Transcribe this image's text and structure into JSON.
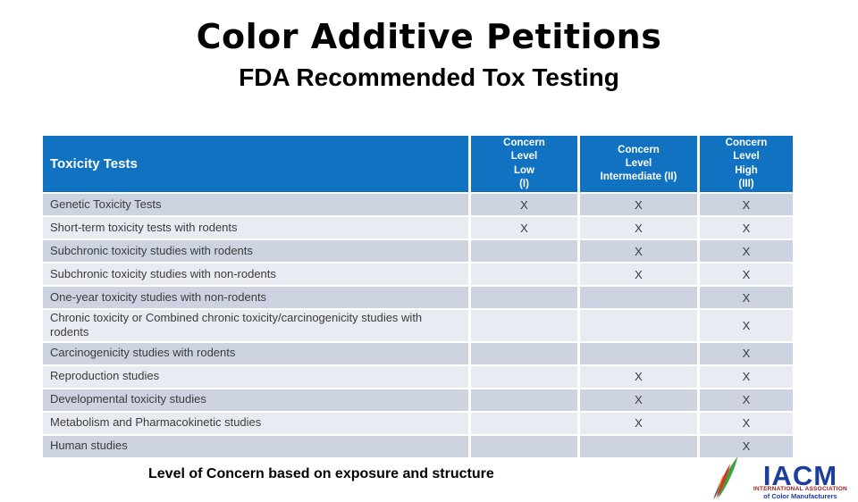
{
  "title": "Color Additive Petitions",
  "subtitle": "FDA Recommended Tox Testing",
  "caption": "Level of Concern based on exposure and structure",
  "table": {
    "header": {
      "col0": "Toxicity Tests",
      "col1": "Concern\nLevel\nLow\n(I)",
      "col2": "Concern\nLevel\nIntermediate (II)",
      "col3": "Concern\nLevel\nHigh\n(III)"
    },
    "colors": {
      "header_bg": "#1272C2",
      "header_text": "#FFFFFF",
      "row_odd_bg": "#CDD3E0",
      "row_even_bg": "#E9EBF3",
      "row_text": "#3B3B3B"
    },
    "rows": [
      {
        "label": "Genetic Toxicity Tests",
        "low": "X",
        "intermediate": "X",
        "high": "X"
      },
      {
        "label": "Short-term toxicity tests with rodents",
        "low": "X",
        "intermediate": "X",
        "high": "X"
      },
      {
        "label": "Subchronic toxicity studies with rodents",
        "low": "",
        "intermediate": "X",
        "high": "X"
      },
      {
        "label": "Subchronic toxicity studies with non-rodents",
        "low": "",
        "intermediate": "X",
        "high": "X"
      },
      {
        "label": "One-year toxicity studies with non-rodents",
        "low": "",
        "intermediate": "",
        "high": "X"
      },
      {
        "label": "Chronic toxicity or Combined chronic toxicity/carcinogenicity studies with rodents",
        "low": "",
        "intermediate": "",
        "high": "X"
      },
      {
        "label": "Carcinogenicity studies with rodents",
        "low": "",
        "intermediate": "",
        "high": "X"
      },
      {
        "label": "Reproduction studies",
        "low": "",
        "intermediate": "X",
        "high": "X"
      },
      {
        "label": "Developmental toxicity studies",
        "low": "",
        "intermediate": "X",
        "high": "X"
      },
      {
        "label": "Metabolism and Pharmacokinetic studies",
        "low": "",
        "intermediate": "X",
        "high": "X"
      },
      {
        "label": "Human studies",
        "low": "",
        "intermediate": "",
        "high": "X"
      }
    ]
  },
  "logo": {
    "acronym": "IACM",
    "tagline_line1": "INTERNATIONAL ASSOCIATION",
    "tagline_line2": "of Color Manufacturers",
    "colors": {
      "acronym_blue": "#1C3F9E",
      "tagline_red": "#9E1B1B",
      "swoosh_green": "#3FA13D",
      "swoosh_red": "#D8322B",
      "swoosh_orange": "#E88A23",
      "swoosh_blue": "#2C56A8",
      "swoosh_teal": "#2FA3A0"
    }
  }
}
